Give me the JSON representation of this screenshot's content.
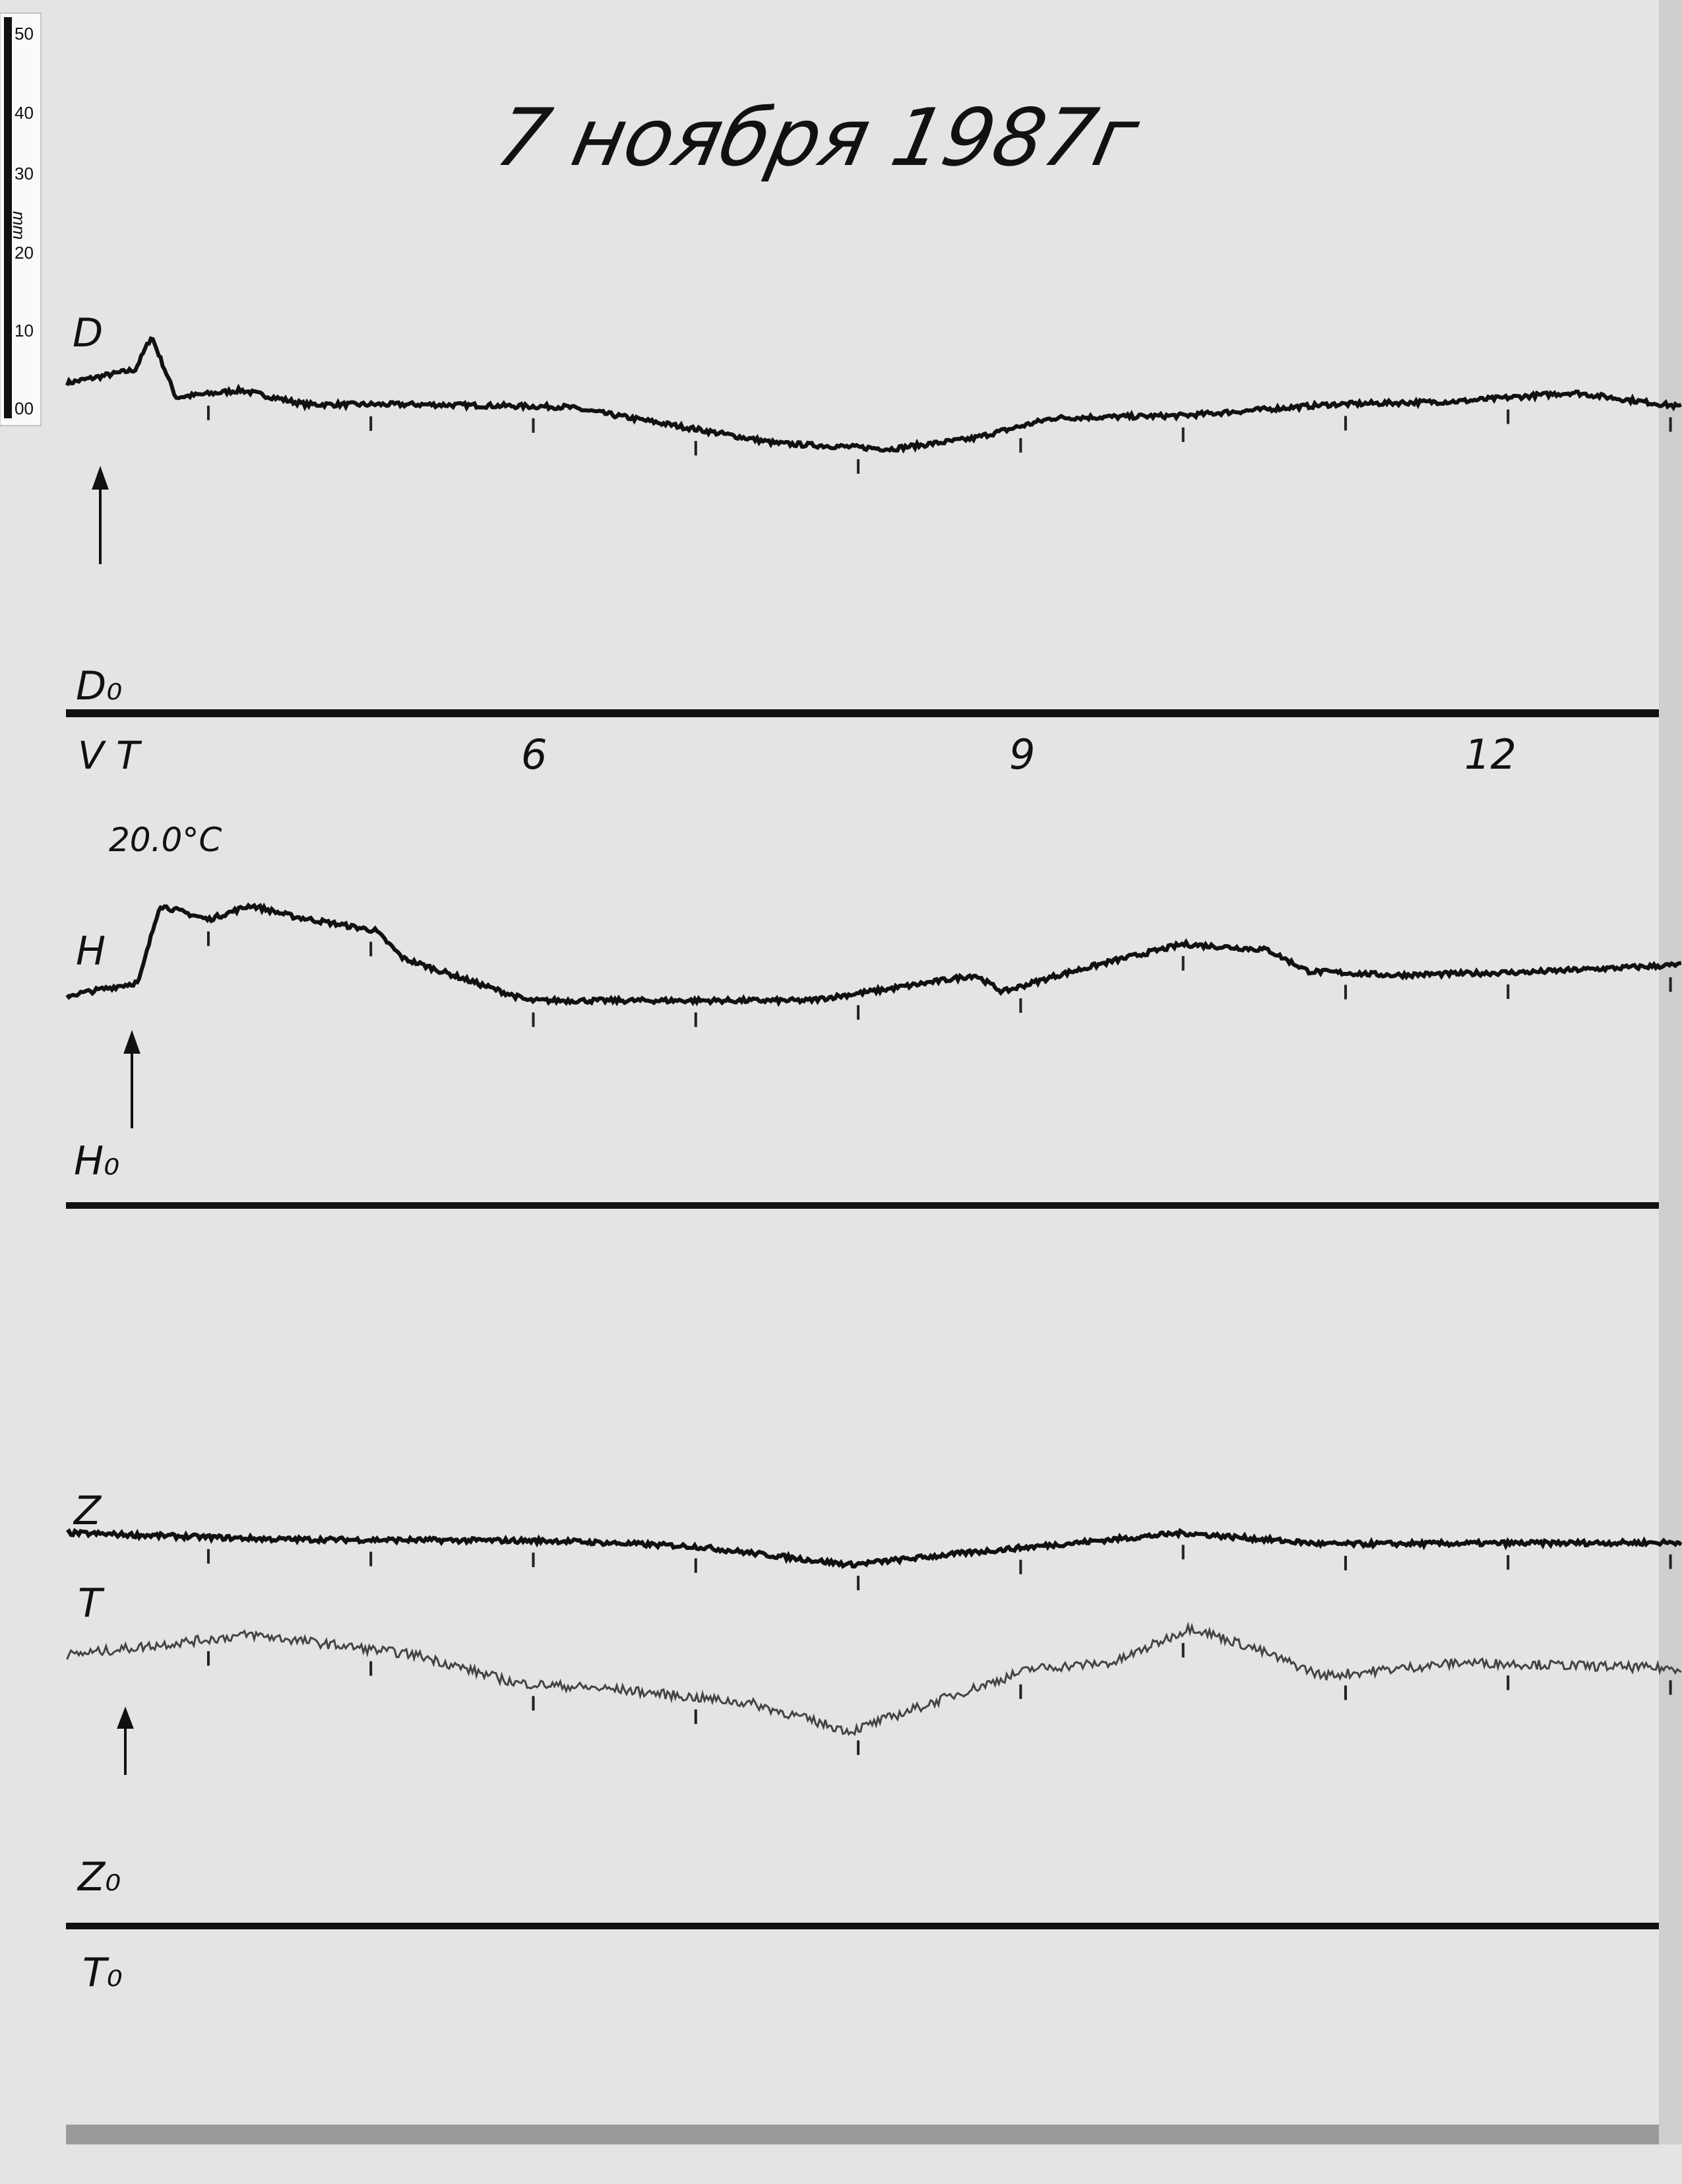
{
  "title": "7 ноября 1987г",
  "ruler": {
    "unit": "mm",
    "ticks": [
      "50",
      "40",
      "30",
      "20",
      "10",
      "00"
    ]
  },
  "chart_data": {
    "type": "line",
    "title": "7 ноября 1987г",
    "xlabel": "",
    "ylabel": "",
    "x_unit": "hour",
    "y_unit": "mm",
    "x_tick_labels": [
      "6",
      "9",
      "12"
    ],
    "x_ticks": [
      6,
      9,
      12
    ],
    "xlim": [
      3.1,
      13.1
    ],
    "start_marker": "V T",
    "annotation": "20.0°C",
    "grid": false,
    "panels": [
      {
        "label": "D",
        "baseline_label": "D₀",
        "series": [
          {
            "name": "D",
            "x": [
              3.13,
              3.55,
              3.65,
              3.8,
              4.2,
              4.6,
              5.3,
              6.2,
              7.0,
              7.5,
              8.2,
              8.7,
              9.2,
              10.0,
              10.9,
              11.7,
              12.4,
              13.07
            ],
            "y": [
              41.6,
              43.3,
              47.5,
              39.8,
              40.7,
              38.9,
              38.9,
              38.6,
              35.8,
              34.0,
              33.3,
              34.6,
              37.2,
              37.5,
              38.9,
              39.3,
              40.4,
              38.6
            ]
          }
        ]
      },
      {
        "label": "H",
        "baseline_label": "H₀",
        "series": [
          {
            "name": "H",
            "x": [
              3.13,
              3.57,
              3.7,
              4.0,
              4.26,
              4.52,
              5.03,
              5.2,
              5.97,
              6.57,
              7.69,
              8.2,
              8.72,
              8.89,
              9.23,
              9.57,
              10.0,
              10.52,
              10.77,
              11.29,
              12.15,
              13.07
            ],
            "y": [
              26.5,
              28.2,
              37.9,
              36.1,
              37.9,
              36.5,
              34.7,
              31.2,
              25.9,
              25.9,
              25.9,
              27.4,
              29.1,
              27.0,
              29.1,
              30.9,
              33.0,
              32.3,
              29.6,
              29.1,
              29.5,
              30.4
            ]
          }
        ]
      },
      {
        "label": "Z",
        "label2": "T",
        "baseline_label": "Z₀",
        "baseline_label2": "T₀",
        "series": [
          {
            "name": "Z",
            "x": [
              3.13,
              4.43,
              6.15,
              7.0,
              7.95,
              8.72,
              10.0,
              10.86,
              13.07
            ],
            "y": [
              49.6,
              48.8,
              48.6,
              47.9,
              45.6,
              47.2,
              49.6,
              48.2,
              48.4
            ]
          },
          {
            "name": "T",
            "x": [
              3.13,
              4.26,
              5.29,
              5.89,
              6.57,
              7.35,
              7.95,
              8.55,
              9.07,
              9.58,
              10.05,
              10.43,
              10.86,
              11.72,
              13.07
            ],
            "y": [
              34.2,
              36.8,
              34.2,
              30.7,
              29.8,
              28.1,
              24.6,
              28.9,
              32.5,
              33.3,
              37.7,
              35.1,
              31.6,
              33.3,
              32.5
            ]
          }
        ]
      }
    ]
  },
  "colors": {
    "paper": "#e4e4e4",
    "ink": "#111111",
    "trace_T": "#444444"
  }
}
